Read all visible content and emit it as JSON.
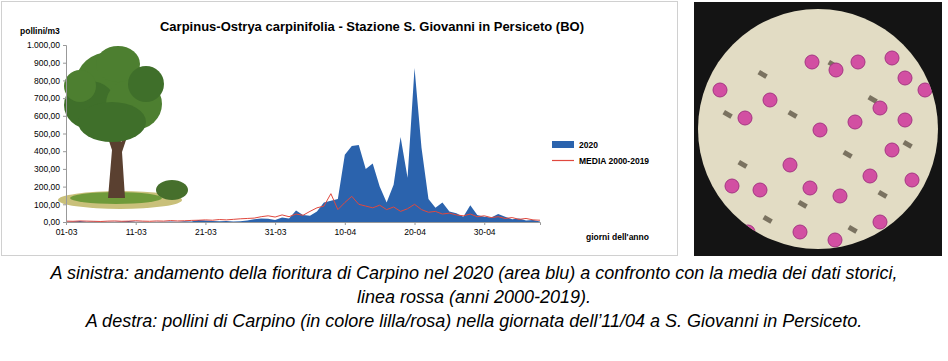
{
  "chart_data": {
    "type": "area",
    "title": "Carpinus-Ostrya carpinifolia - Stazione S. Giovanni in Persiceto (BO)",
    "y_label": "pollini/m3",
    "x_label": "giorni dell'anno",
    "categories": [
      "01-03",
      null,
      null,
      null,
      null,
      null,
      null,
      null,
      null,
      null,
      "11-03",
      null,
      null,
      null,
      null,
      null,
      null,
      null,
      null,
      null,
      "21-03",
      null,
      null,
      null,
      null,
      null,
      null,
      null,
      null,
      null,
      "31-03",
      null,
      null,
      null,
      null,
      null,
      null,
      null,
      null,
      null,
      "10-04",
      null,
      null,
      null,
      null,
      null,
      null,
      null,
      null,
      null,
      "20-04",
      null,
      null,
      null,
      null,
      null,
      null,
      null,
      null,
      null,
      "30-04",
      null,
      null,
      null,
      null,
      null,
      null,
      null,
      null
    ],
    "series": [
      {
        "name": "2020",
        "type": "area",
        "color": "#2b63ad",
        "values": [
          2,
          3,
          5,
          2,
          3,
          2,
          1,
          1,
          3,
          5,
          2,
          1,
          0,
          2,
          1,
          3,
          2,
          4,
          3,
          12,
          8,
          5,
          4,
          6,
          3,
          4,
          8,
          15,
          20,
          18,
          12,
          25,
          20,
          65,
          40,
          35,
          60,
          110,
          120,
          130,
          380,
          430,
          435,
          300,
          330,
          200,
          110,
          210,
          480,
          250,
          870,
          420,
          130,
          80,
          110,
          60,
          50,
          30,
          95,
          40,
          30,
          25,
          45,
          30,
          15,
          20,
          8,
          12,
          3
        ]
      },
      {
        "name": "MEDIA 2000-2019",
        "type": "line",
        "color": "#e0483e",
        "values": [
          5,
          4,
          6,
          5,
          4,
          3,
          5,
          6,
          4,
          5,
          7,
          5,
          4,
          6,
          5,
          8,
          6,
          7,
          9,
          10,
          12,
          10,
          14,
          12,
          15,
          18,
          20,
          22,
          30,
          35,
          28,
          40,
          30,
          45,
          38,
          60,
          80,
          90,
          160,
          70,
          110,
          145,
          100,
          90,
          80,
          95,
          70,
          85,
          60,
          75,
          100,
          70,
          55,
          60,
          45,
          50,
          40,
          35,
          45,
          30,
          35,
          25,
          30,
          20,
          25,
          15,
          20,
          12,
          10
        ]
      }
    ],
    "ylim": [
      0,
      1000
    ],
    "yticks": [
      {
        "value": 0,
        "label": "0,00"
      },
      {
        "value": 100,
        "label": "100,00"
      },
      {
        "value": 200,
        "label": "200,00"
      },
      {
        "value": 300,
        "label": "300,00"
      },
      {
        "value": 400,
        "label": "400,00"
      },
      {
        "value": 500,
        "label": "500,00"
      },
      {
        "value": 600,
        "label": "600,00"
      },
      {
        "value": 700,
        "label": "700,00"
      },
      {
        "value": 800,
        "label": "800,00"
      },
      {
        "value": 900,
        "label": "900,00"
      },
      {
        "value": 1000,
        "label": "1.000,00"
      }
    ],
    "grid": false,
    "legend": "right"
  },
  "caption": [
    "A sinistra: andamento della fioritura di Carpino nel 2020 (area blu) a confronto con la media dei dati storici, linea rossa (anni 2000-2019).",
    "A destra: pollini di Carpino (in colore lilla/rosa) nella giornata dell’11/04 a S. Giovanni in Persiceto."
  ]
}
